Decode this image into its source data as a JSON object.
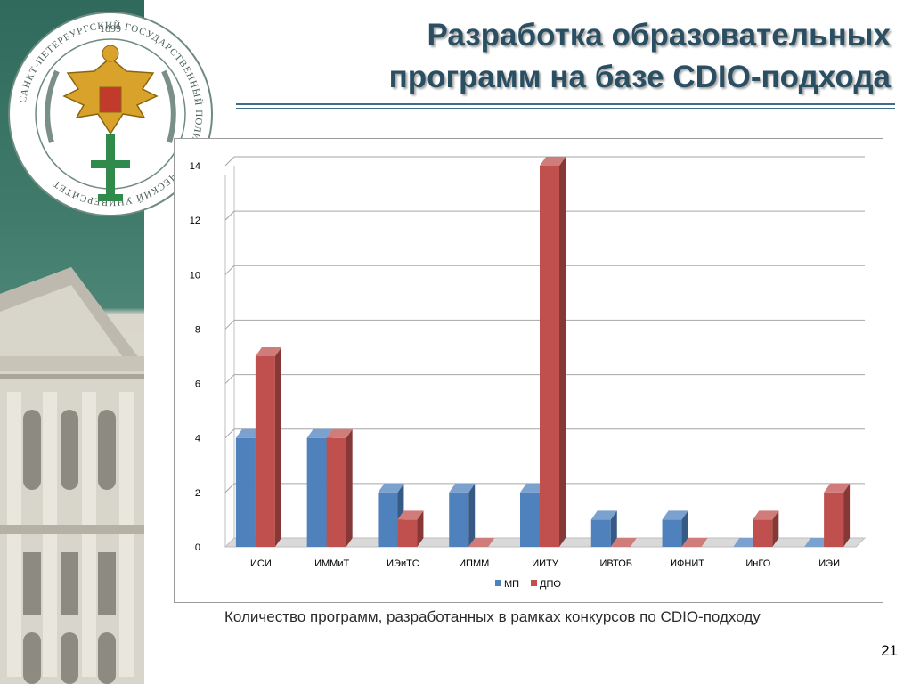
{
  "slide": {
    "title_line1": "Разработка образовательных",
    "title_line2": "программ на базе CDIO-подхода",
    "caption": "Количество программ, разработанных в рамках конкурсов по CDIO-подходу",
    "page_number": "21"
  },
  "emblem": {
    "year": "1899",
    "ring_text": "САНКТ-ПЕТЕРБУРГСКИЙ ГОСУДАРСТВЕННЫЙ ПОЛИТЕХНИЧЕСКИЙ УНИВЕРСИТЕТ"
  },
  "colors": {
    "title": "#2b4f62",
    "series_mp": "#4f81bd",
    "series_dpo": "#c0504d"
  },
  "chart_data": {
    "type": "bar",
    "categories": [
      "ИСИ",
      "ИММиТ",
      "ИЭиТС",
      "ИПММ",
      "ИИТУ",
      "ИВТОБ",
      "ИФНИТ",
      "ИнГО",
      "ИЭИ"
    ],
    "series": [
      {
        "name": "МП",
        "values": [
          4,
          4,
          2,
          2,
          2,
          1,
          1,
          0,
          0
        ]
      },
      {
        "name": "ДПО",
        "values": [
          7,
          4,
          1,
          0,
          14,
          0,
          0,
          1,
          2
        ]
      }
    ],
    "ylim": [
      0,
      14
    ],
    "yticks": [
      "0",
      "2",
      "4",
      "6",
      "8",
      "10",
      "12",
      "14"
    ],
    "grid": true,
    "legend_position": "bottom",
    "style": "3d-column"
  }
}
